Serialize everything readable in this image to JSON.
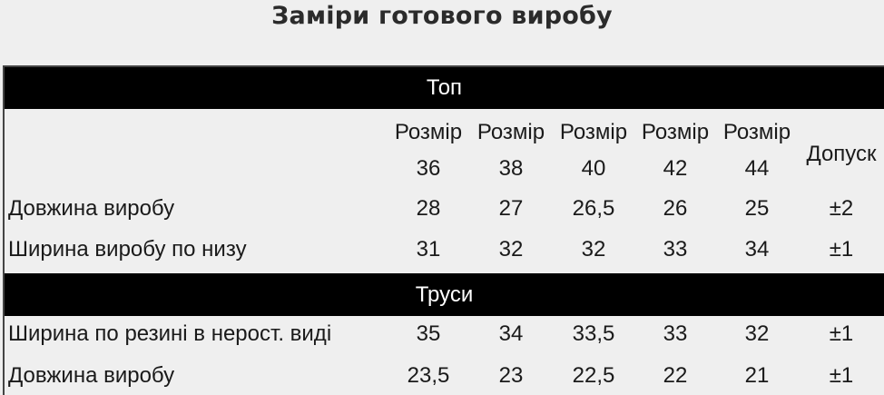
{
  "title": "Заміри готового виробу",
  "headers": {
    "size_word": "Розмір",
    "sizes": [
      "36",
      "38",
      "40",
      "42",
      "44"
    ],
    "tolerance": "Допуск"
  },
  "sections": [
    {
      "name": "Топ",
      "rows": [
        {
          "label": "Довжина виробу",
          "values": [
            "28",
            "27",
            "26,5",
            "26",
            "25"
          ],
          "tolerance": "±2"
        },
        {
          "label": "Ширина виробу по низу",
          "values": [
            "31",
            "32",
            "32",
            "33",
            "34"
          ],
          "tolerance": "±1"
        }
      ]
    },
    {
      "name": "Труси",
      "rows": [
        {
          "label": "Ширина по резині в нерост. виді",
          "values": [
            "35",
            "34",
            "33,5",
            "33",
            "32"
          ],
          "tolerance": "±1"
        },
        {
          "label": "Довжина виробу",
          "values": [
            "23,5",
            "23",
            "22,5",
            "22",
            "21"
          ],
          "tolerance": "±1"
        }
      ]
    }
  ]
}
